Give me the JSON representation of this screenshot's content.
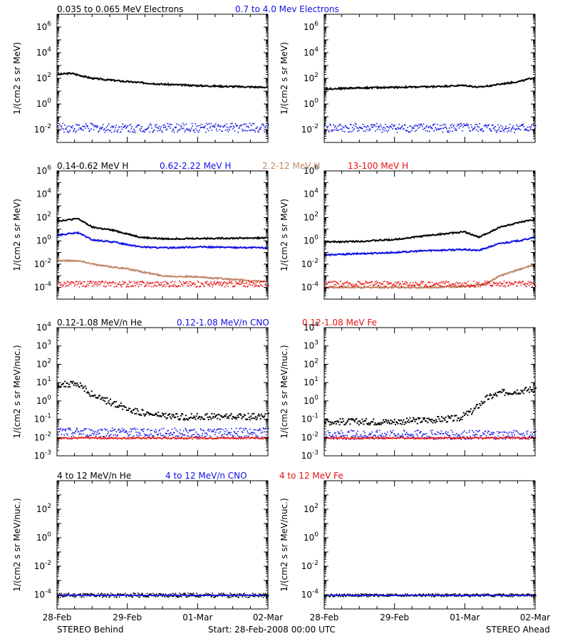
{
  "colors": {
    "black": "#000000",
    "blue": "#1010e6",
    "brown": "#c08868",
    "red": "#e61010",
    "axis": "#000000"
  },
  "footer": {
    "left": "STEREO Behind",
    "center": "Start: 28-Feb-2008 00:00 UTC",
    "right": "STEREO Ahead"
  },
  "x_ticks": [
    "28-Feb",
    "29-Feb",
    "01-Mar",
    "02-Mar"
  ],
  "chart_data": [
    {
      "row": 0,
      "type": "scatter",
      "legend": [
        {
          "label": "0.035 to 0.065 MeV Electrons",
          "color": "black"
        },
        {
          "label": "0.7 to 4.0 Mev Electrons",
          "color": "blue"
        }
      ],
      "ylabel": "1/(cm2 s sr MeV)",
      "yscale": "log",
      "ylim_exp": [
        -3,
        7
      ],
      "ytick_exps": [
        -2,
        0,
        2,
        4,
        6
      ],
      "xlim_days": [
        0,
        3
      ],
      "panels": [
        {
          "side": "STEREO Behind",
          "series": [
            {
              "color": "black",
              "mode": "line",
              "points": [
                [
                  0,
                  200
                ],
                [
                  0.2,
                  250
                ],
                [
                  0.5,
                  100
                ],
                [
                  1,
                  55
                ],
                [
                  1.5,
                  35
                ],
                [
                  2,
                  27
                ],
                [
                  2.5,
                  23
                ],
                [
                  3,
                  20
                ]
              ]
            },
            {
              "color": "blue",
              "mode": "noise",
              "level": 0.015,
              "spread": 0.35
            }
          ]
        },
        {
          "side": "STEREO Ahead",
          "series": [
            {
              "color": "black",
              "mode": "line",
              "points": [
                [
                  0,
                  15
                ],
                [
                  0.5,
                  18
                ],
                [
                  1,
                  20
                ],
                [
                  1.5,
                  22
                ],
                [
                  2,
                  28
                ],
                [
                  2.2,
                  20
                ],
                [
                  2.5,
                  35
                ],
                [
                  2.8,
                  60
                ],
                [
                  3,
                  120
                ]
              ]
            },
            {
              "color": "blue",
              "mode": "noise",
              "level": 0.015,
              "spread": 0.35
            }
          ]
        }
      ]
    },
    {
      "row": 1,
      "type": "scatter",
      "legend": [
        {
          "label": "0.14-0.62 MeV H",
          "color": "black"
        },
        {
          "label": "0.62-2.22 MeV H",
          "color": "blue"
        },
        {
          "label": "2.2-12 MeV H",
          "color": "brown"
        },
        {
          "label": "13-100 MeV H",
          "color": "red"
        }
      ],
      "ylabel": "1/(cm2 s sr MeV)",
      "yscale": "log",
      "ylim_exp": [
        -5,
        6
      ],
      "ytick_exps": [
        -4,
        -2,
        0,
        2,
        4,
        6
      ],
      "xlim_days": [
        0,
        3
      ],
      "panels": [
        {
          "side": "STEREO Behind",
          "series": [
            {
              "color": "black",
              "mode": "line",
              "points": [
                [
                  0,
                  50
                ],
                [
                  0.3,
                  80
                ],
                [
                  0.5,
                  15
                ],
                [
                  0.8,
                  8
                ],
                [
                  1.2,
                  2
                ],
                [
                  1.5,
                  1.5
                ],
                [
                  2,
                  1.6
                ],
                [
                  3,
                  1.8
                ]
              ]
            },
            {
              "color": "blue",
              "mode": "line",
              "points": [
                [
                  0,
                  3
                ],
                [
                  0.3,
                  5
                ],
                [
                  0.5,
                  1.2
                ],
                [
                  0.8,
                  0.8
                ],
                [
                  1.2,
                  0.3
                ],
                [
                  1.5,
                  0.25
                ],
                [
                  2,
                  0.3
                ],
                [
                  3,
                  0.25
                ]
              ]
            },
            {
              "color": "brown",
              "mode": "line",
              "points": [
                [
                  0,
                  0.02
                ],
                [
                  0.3,
                  0.02
                ],
                [
                  0.6,
                  0.008
                ],
                [
                  1,
                  0.004
                ],
                [
                  1.5,
                  0.001
                ],
                [
                  2,
                  0.0008
                ],
                [
                  3,
                  0.0003
                ]
              ]
            },
            {
              "color": "red",
              "mode": "noise",
              "level": 0.00022,
              "spread": 0.25
            }
          ]
        },
        {
          "side": "STEREO Ahead",
          "series": [
            {
              "color": "black",
              "mode": "line",
              "points": [
                [
                  0,
                  0.8
                ],
                [
                  0.5,
                  0.9
                ],
                [
                  1,
                  1.3
                ],
                [
                  1.5,
                  3
                ],
                [
                  2,
                  6
                ],
                [
                  2.2,
                  2
                ],
                [
                  2.5,
                  15
                ],
                [
                  2.8,
                  40
                ],
                [
                  3,
                  70
                ]
              ]
            },
            {
              "color": "blue",
              "mode": "line",
              "points": [
                [
                  0,
                  0.06
                ],
                [
                  0.5,
                  0.08
                ],
                [
                  1,
                  0.1
                ],
                [
                  1.5,
                  0.15
                ],
                [
                  2,
                  0.18
                ],
                [
                  2.2,
                  0.15
                ],
                [
                  2.5,
                  0.6
                ],
                [
                  2.8,
                  1.1
                ],
                [
                  3,
                  2
                ]
              ]
            },
            {
              "color": "brown",
              "mode": "line",
              "points": [
                [
                  0,
                  0.0001
                ],
                [
                  1.5,
                  0.0001
                ],
                [
                  2,
                  0.00012
                ],
                [
                  2.3,
                  0.0002
                ],
                [
                  2.5,
                  0.001
                ],
                [
                  2.8,
                  0.004
                ],
                [
                  3,
                  0.009
                ]
              ]
            },
            {
              "color": "red",
              "mode": "noise",
              "level": 0.00022,
              "spread": 0.25
            }
          ]
        }
      ]
    },
    {
      "row": 2,
      "type": "scatter",
      "legend": [
        {
          "label": "0.12-1.08 MeV/n He",
          "color": "black"
        },
        {
          "label": "0.12-1.08 MeV/n CNO",
          "color": "blue"
        },
        {
          "label": "0.12-1.08 MeV Fe",
          "color": "red"
        }
      ],
      "ylabel": "1/(cm2 s sr MeV/nuc.)",
      "yscale": "log",
      "ylim_exp": [
        -3,
        4
      ],
      "ytick_exps": [
        -3,
        -2,
        -1,
        0,
        1,
        2,
        3,
        4
      ],
      "xlim_days": [
        0,
        3
      ],
      "panels": [
        {
          "side": "STEREO Behind",
          "series": [
            {
              "color": "black",
              "mode": "scatter",
              "points": [
                [
                  0,
                  8
                ],
                [
                  0.2,
                  9
                ],
                [
                  0.35,
                  7
                ],
                [
                  0.45,
                  3
                ],
                [
                  0.6,
                  1.5
                ],
                [
                  0.8,
                  0.8
                ],
                [
                  1,
                  0.4
                ],
                [
                  1.3,
                  0.2
                ],
                [
                  1.6,
                  0.15
                ],
                [
                  2,
                  0.15
                ],
                [
                  2.5,
                  0.15
                ],
                [
                  3,
                  0.15
                ]
              ]
            },
            {
              "color": "blue",
              "mode": "noise",
              "level": 0.02,
              "spread": 0.25
            },
            {
              "color": "red",
              "mode": "noise",
              "level": 0.01,
              "spread": 0.05
            }
          ]
        },
        {
          "side": "STEREO Ahead",
          "series": [
            {
              "color": "black",
              "mode": "scatter",
              "points": [
                [
                  0,
                  0.08
                ],
                [
                  0.5,
                  0.08
                ],
                [
                  1,
                  0.08
                ],
                [
                  1.5,
                  0.1
                ],
                [
                  1.9,
                  0.12
                ],
                [
                  2.1,
                  0.3
                ],
                [
                  2.3,
                  1.5
                ],
                [
                  2.5,
                  3
                ],
                [
                  2.8,
                  4
                ],
                [
                  3,
                  5
                ]
              ]
            },
            {
              "color": "blue",
              "mode": "noise",
              "level": 0.015,
              "spread": 0.25
            },
            {
              "color": "red",
              "mode": "noise",
              "level": 0.01,
              "spread": 0.05
            }
          ]
        }
      ]
    },
    {
      "row": 3,
      "type": "scatter",
      "legend": [
        {
          "label": "4 to 12 MeV/n He",
          "color": "black"
        },
        {
          "label": "4 to 12 MeV/n CNO",
          "color": "blue"
        },
        {
          "label": "4 to 12 MeV Fe",
          "color": "red"
        }
      ],
      "ylabel": "1/(cm2 s sr MeV/nuc.)",
      "yscale": "log",
      "ylim_exp": [
        -5,
        4
      ],
      "ytick_exps": [
        -4,
        -2,
        0,
        2
      ],
      "xlim_days": [
        0,
        3
      ],
      "panels": [
        {
          "side": "STEREO Behind",
          "series": [
            {
              "color": "black",
              "mode": "noise",
              "level": 0.0001,
              "spread": 0.15
            },
            {
              "color": "blue",
              "mode": "noise",
              "level": 0.0001,
              "spread": 0.02
            }
          ]
        },
        {
          "side": "STEREO Ahead",
          "series": [
            {
              "color": "black",
              "mode": "noise",
              "level": 0.0001,
              "spread": 0.1
            },
            {
              "color": "blue",
              "mode": "noise",
              "level": 0.0001,
              "spread": 0.02
            }
          ]
        }
      ]
    }
  ]
}
